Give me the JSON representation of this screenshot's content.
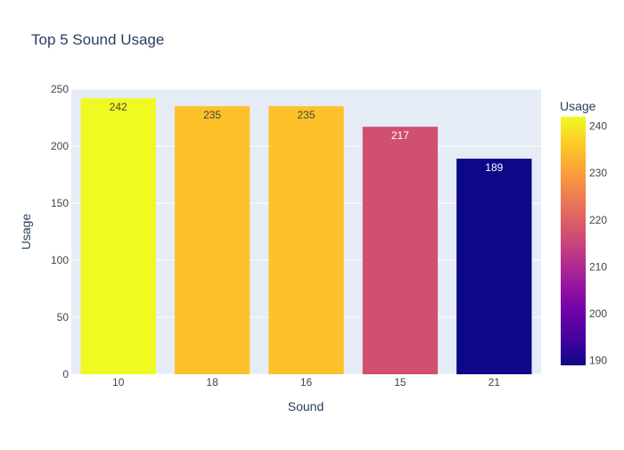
{
  "chart_data": {
    "type": "bar",
    "title": "Top 5 Sound Usage",
    "xlabel": "Sound",
    "ylabel": "Usage",
    "categories": [
      "10",
      "18",
      "16",
      "15",
      "21"
    ],
    "values": [
      242,
      235,
      235,
      217,
      189
    ],
    "data_labels": [
      "242",
      "235",
      "235",
      "217",
      "189"
    ],
    "ylim": [
      0,
      250
    ],
    "yticks": [
      0,
      50,
      100,
      150,
      200,
      250
    ],
    "grid": true,
    "colorbar": {
      "title": "Usage",
      "range": [
        189,
        242
      ],
      "ticks": [
        190,
        200,
        210,
        220,
        230,
        240
      ],
      "colorscale": [
        "#0d0887",
        "#46039f",
        "#7201a8",
        "#9c179e",
        "#bd3786",
        "#d8576b",
        "#ed7953",
        "#fb9f3a",
        "#fdca26",
        "#f0f921"
      ]
    },
    "colors": {
      "plot_background": "#e5ecf6",
      "grid": "#ffffff",
      "title_text": "#2a3f5f",
      "tick_text": "#444444",
      "label_dark": "#444444",
      "label_light": "#ffffff"
    }
  }
}
